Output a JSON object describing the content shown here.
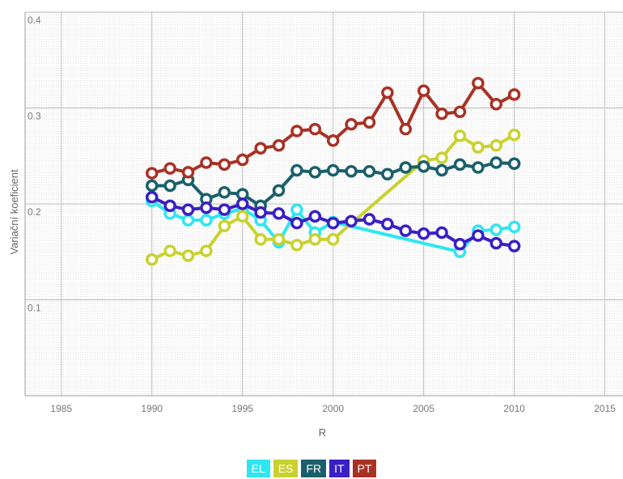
{
  "chart_data": {
    "type": "line",
    "xlabel": "R",
    "ylabel": "Variační koeficient",
    "xlim": [
      1983,
      2016
    ],
    "ylim": [
      0,
      0.4
    ],
    "x_ticks": [
      "1985",
      "1990",
      "1995",
      "2000",
      "2005",
      "2010",
      "2015"
    ],
    "y_ticks": [
      "0.1",
      "0.2",
      "0.3",
      "0.4"
    ],
    "grid": true,
    "legend_position": "bottom-center",
    "series": [
      {
        "name": "EL",
        "color": "#2ee6f0",
        "x": [
          1990,
          1991,
          1992,
          1993,
          1994,
          1995,
          1996,
          1997,
          1998,
          1999,
          2000,
          2007,
          2008,
          2009,
          2010
        ],
        "values": [
          0.203,
          0.19,
          0.183,
          0.183,
          0.19,
          0.195,
          0.183,
          0.16,
          0.194,
          0.17,
          0.181,
          0.15,
          0.172,
          0.173,
          0.176
        ]
      },
      {
        "name": "ES",
        "color": "#c9d12e",
        "x": [
          1990,
          1991,
          1992,
          1993,
          1994,
          1995,
          1996,
          1997,
          1998,
          1999,
          2000,
          2005,
          2006,
          2007,
          2008,
          2009,
          2010
        ],
        "values": [
          0.142,
          0.151,
          0.146,
          0.151,
          0.177,
          0.187,
          0.163,
          0.163,
          0.157,
          0.163,
          0.163,
          0.245,
          0.248,
          0.271,
          0.259,
          0.261,
          0.272
        ]
      },
      {
        "name": "FR",
        "color": "#1a5f6b",
        "x": [
          1990,
          1991,
          1992,
          1993,
          1994,
          1995,
          1996,
          1997,
          1998,
          1999,
          2000,
          2001,
          2002,
          2003,
          2004,
          2005,
          2006,
          2007,
          2008,
          2009,
          2010
        ],
        "values": [
          0.219,
          0.219,
          0.225,
          0.205,
          0.212,
          0.21,
          0.198,
          0.214,
          0.235,
          0.233,
          0.235,
          0.234,
          0.234,
          0.231,
          0.238,
          0.239,
          0.235,
          0.241,
          0.238,
          0.243,
          0.242
        ]
      },
      {
        "name": "IT",
        "color": "#3a1fc4",
        "x": [
          1990,
          1991,
          1992,
          1993,
          1994,
          1995,
          1996,
          1997,
          1998,
          1999,
          2000,
          2001,
          2002,
          2003,
          2004,
          2005,
          2006,
          2007,
          2008,
          2009,
          2010
        ],
        "values": [
          0.207,
          0.198,
          0.194,
          0.196,
          0.194,
          0.2,
          0.191,
          0.19,
          0.18,
          0.187,
          0.18,
          0.182,
          0.184,
          0.179,
          0.172,
          0.169,
          0.17,
          0.158,
          0.167,
          0.159,
          0.156
        ]
      },
      {
        "name": "PT",
        "color": "#a83226",
        "x": [
          1990,
          1991,
          1992,
          1993,
          1994,
          1995,
          1996,
          1997,
          1998,
          1999,
          2000,
          2001,
          2002,
          2003,
          2004,
          2005,
          2006,
          2007,
          2008,
          2009,
          2010
        ],
        "values": [
          0.232,
          0.237,
          0.233,
          0.243,
          0.241,
          0.246,
          0.258,
          0.261,
          0.276,
          0.278,
          0.266,
          0.283,
          0.285,
          0.316,
          0.278,
          0.318,
          0.294,
          0.296,
          0.326,
          0.304,
          0.314
        ]
      }
    ]
  }
}
